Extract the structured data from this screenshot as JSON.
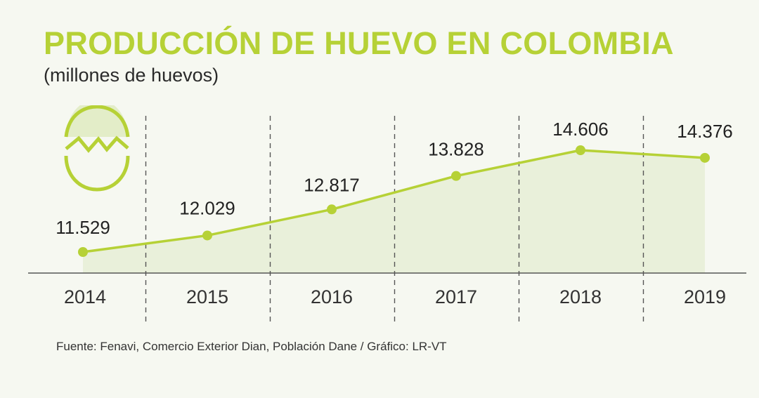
{
  "title": "PRODUCCIÓN DE HUEVO EN COLOMBIA",
  "subtitle": "(millones de huevos)",
  "source": "Fuente: Fenavi, Comercio Exterior Dian, Población Dane / Gráfico: LR-VT",
  "colors": {
    "accent": "#b6d136",
    "area": "#e6efd6",
    "text": "#222222",
    "background": "#f6f8f1"
  },
  "icon": "broken-egg-icon",
  "chart_data": {
    "type": "line",
    "categories": [
      "2014",
      "2015",
      "2016",
      "2017",
      "2018",
      "2019"
    ],
    "values": [
      11529,
      12029,
      12817,
      13828,
      14606,
      14376
    ],
    "data_labels": [
      "11.529",
      "12.029",
      "12.817",
      "13.828",
      "14.606",
      "14.376"
    ],
    "ylim": [
      10500,
      15100
    ],
    "grid": "vertical dashed separators",
    "area_fill": true
  }
}
